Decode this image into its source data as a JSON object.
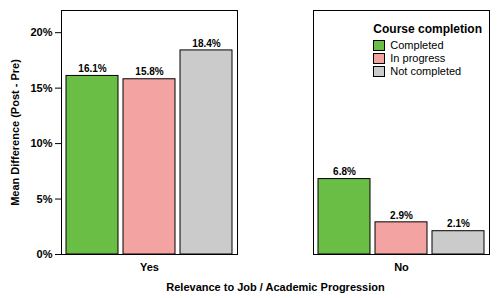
{
  "chart_data": {
    "type": "bar",
    "x_label": "Relevance to Job / Academic Progression",
    "y_label": "Mean Difference (Post - Pre)",
    "legend_title": "Course completion",
    "categories": [
      "Yes",
      "No"
    ],
    "series": [
      {
        "name": "Completed",
        "color": "#6abd45",
        "values": [
          16.1,
          6.8
        ],
        "value_labels": [
          "16.1%",
          "6.8%"
        ]
      },
      {
        "name": "In progress",
        "color": "#f4a3a3",
        "values": [
          15.8,
          2.9
        ],
        "value_labels": [
          "15.8%",
          "2.9%"
        ]
      },
      {
        "name": "Not completed",
        "color": "#cbcbcb",
        "values": [
          18.4,
          2.1
        ],
        "value_labels": [
          "18.4%",
          "2.1%"
        ]
      }
    ],
    "ylim": [
      0,
      22
    ],
    "yticks": [
      {
        "value": 0,
        "label": "0%"
      },
      {
        "value": 5,
        "label": "5%"
      },
      {
        "value": 10,
        "label": "10%"
      },
      {
        "value": 15,
        "label": "15%"
      },
      {
        "value": 20,
        "label": "20%"
      }
    ],
    "data_labels": true,
    "legend": "top-right",
    "grid": false
  }
}
